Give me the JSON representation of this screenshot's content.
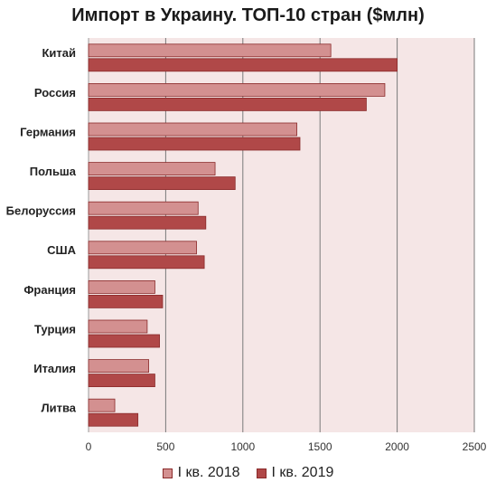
{
  "chart_data": {
    "type": "bar",
    "orientation": "horizontal",
    "title": "Импорт в Украину. ТОП-10 стран ($млн)",
    "categories": [
      "Китай",
      "Россия",
      "Германия",
      "Польша",
      "Белоруссия",
      "США",
      "Франция",
      "Турция",
      "Италия",
      "Литва"
    ],
    "series": [
      {
        "name": "I кв. 2018",
        "color": "#d39090",
        "values": [
          1570,
          1920,
          1350,
          820,
          710,
          700,
          430,
          380,
          390,
          170
        ]
      },
      {
        "name": "I кв. 2019",
        "color": "#b04848",
        "values": [
          2000,
          1800,
          1370,
          950,
          760,
          750,
          480,
          460,
          430,
          320
        ]
      }
    ],
    "xlim": [
      0,
      2500
    ],
    "xticks": [
      0,
      500,
      1000,
      1500,
      2000,
      2500
    ],
    "grid": true,
    "plot_background": "#f5e6e6",
    "legend_position": "bottom"
  }
}
